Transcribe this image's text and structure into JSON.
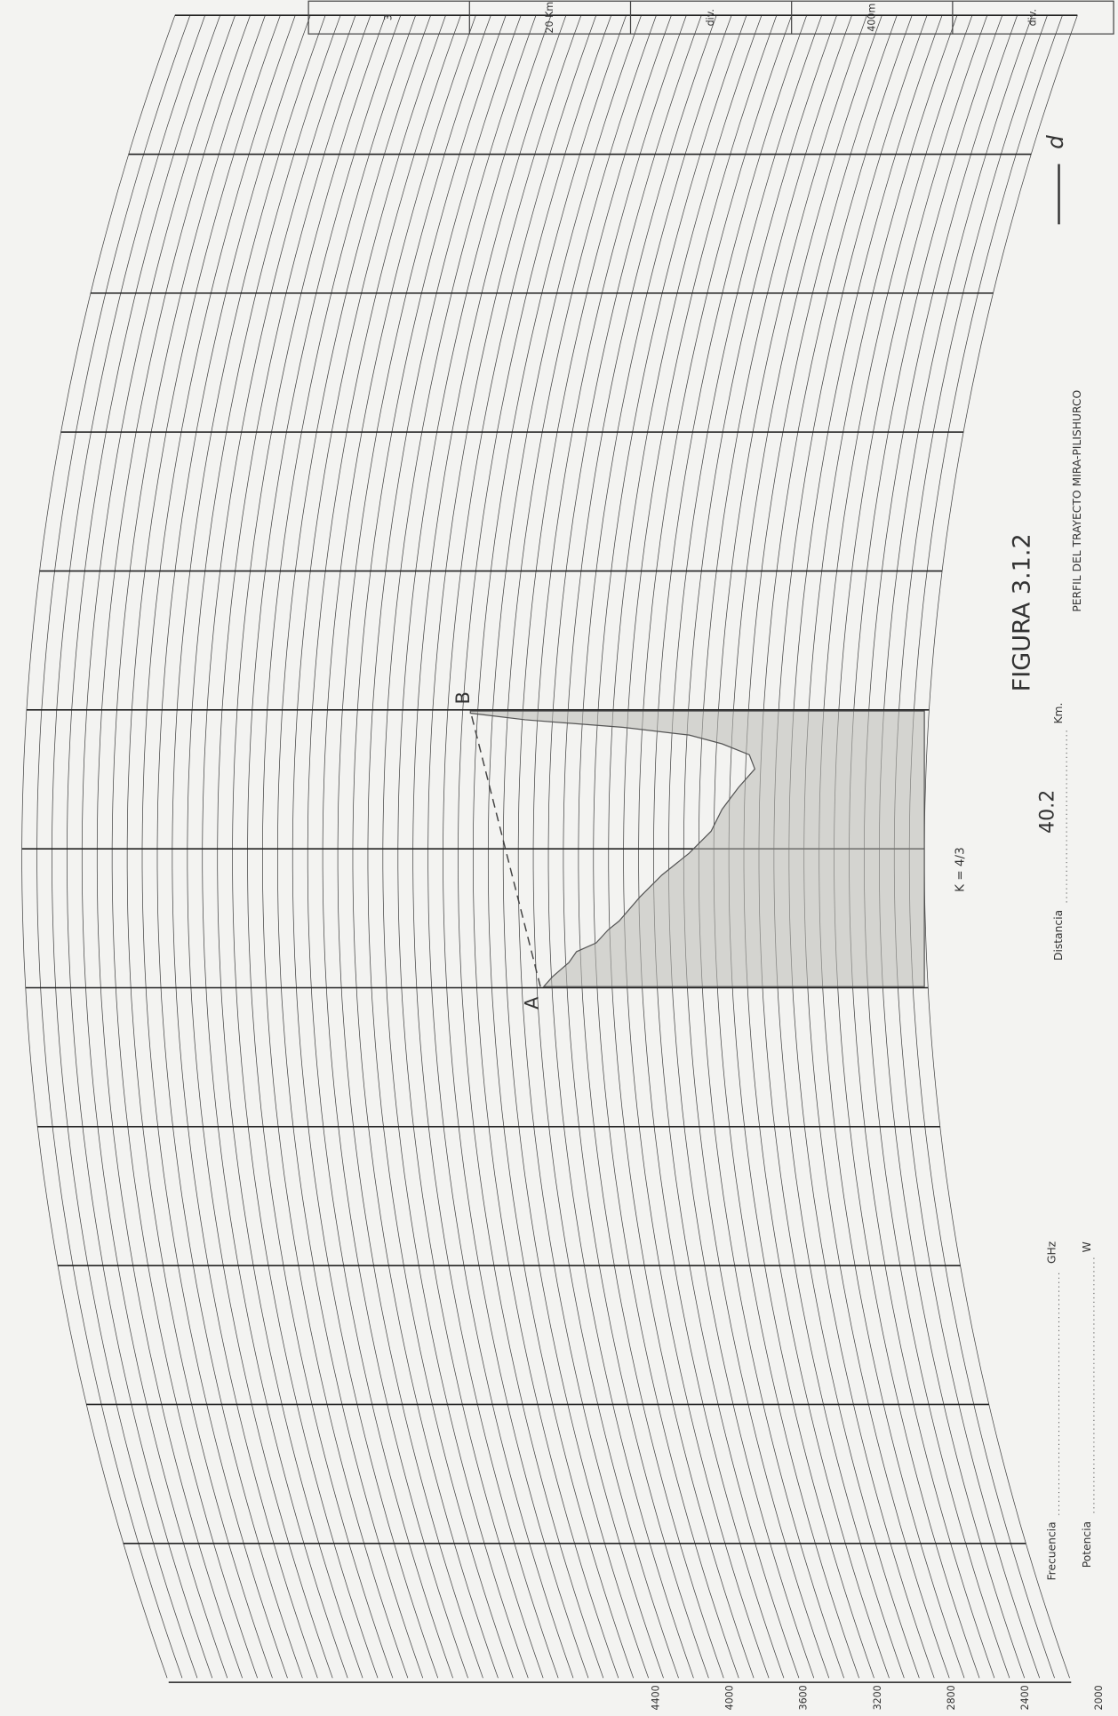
{
  "header": {
    "cells": [
      "3",
      "20 Km",
      "div.",
      "400m",
      "div."
    ]
  },
  "scale": {
    "labels": [
      "4400",
      "4000",
      "3600",
      "3200",
      "2800",
      "2400",
      "2000"
    ]
  },
  "form": {
    "frequency_label": "Frecuencia",
    "frequency_unit": "GHz",
    "power_label": "Potencia",
    "power_unit": "W",
    "k_factor": "K = 4/3",
    "distance_label": "Distancia",
    "distance_value": "40.2",
    "distance_unit": "Km."
  },
  "profile": {
    "point_a": "A",
    "point_b": "B"
  },
  "figure": {
    "title": "FIGURA 3.1.2",
    "caption": "PERFIL DEL TRAYECTO MIRA-PILISHURCO",
    "axis_symbol": "d"
  }
}
